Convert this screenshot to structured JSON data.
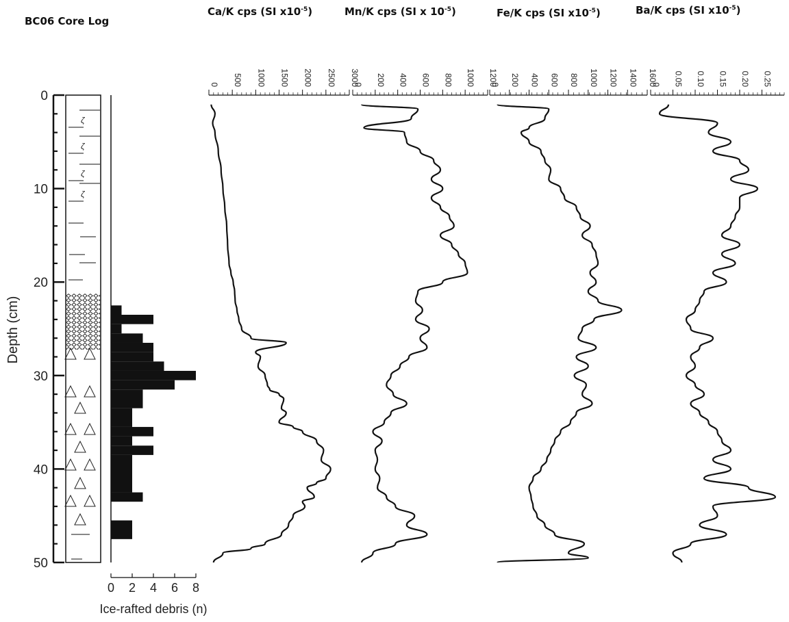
{
  "titles": {
    "core_log": "BC06 Core Log",
    "ca": {
      "main": "Ca/K cps (SI x10",
      "sup": "-5",
      "end": ")"
    },
    "mn": {
      "main": "Mn/K cps (SI x 10",
      "sup": "-5",
      "end": ")"
    },
    "fe": {
      "main": "Fe/K cps (SI x10",
      "sup": "-5",
      "end": ")"
    },
    "ba": {
      "main": "Ba/K cps (SI x10",
      "sup": "-5",
      "end": ")"
    }
  },
  "chart_data": [
    {
      "type": "bar",
      "orientation": "horizontal",
      "ylabel": "Depth (cm)",
      "xlabel": "Ice-rafted debris (n)",
      "ylim": [
        0,
        50
      ],
      "xlim": [
        0,
        8
      ],
      "yticks": [
        "0",
        "10",
        "20",
        "30",
        "40",
        "50"
      ],
      "xticks": [
        "0",
        "2",
        "4",
        "6",
        "8"
      ],
      "bars": [
        {
          "top": 22.5,
          "bottom": 23.5,
          "value": 1
        },
        {
          "top": 23.5,
          "bottom": 24.5,
          "value": 4
        },
        {
          "top": 24.5,
          "bottom": 25.5,
          "value": 1
        },
        {
          "top": 25.5,
          "bottom": 26.5,
          "value": 3
        },
        {
          "top": 26.5,
          "bottom": 27.5,
          "value": 4
        },
        {
          "top": 27.5,
          "bottom": 28.5,
          "value": 4
        },
        {
          "top": 28.5,
          "bottom": 29.5,
          "value": 5
        },
        {
          "top": 29.5,
          "bottom": 30.5,
          "value": 8
        },
        {
          "top": 30.5,
          "bottom": 31.5,
          "value": 6
        },
        {
          "top": 31.5,
          "bottom": 33.5,
          "value": 3
        },
        {
          "top": 33.5,
          "bottom": 35.5,
          "value": 2
        },
        {
          "top": 35.5,
          "bottom": 36.5,
          "value": 4
        },
        {
          "top": 36.5,
          "bottom": 37.5,
          "value": 2
        },
        {
          "top": 37.5,
          "bottom": 38.5,
          "value": 4
        },
        {
          "top": 38.5,
          "bottom": 42.5,
          "value": 2
        },
        {
          "top": 42.5,
          "bottom": 43.5,
          "value": 3
        },
        {
          "top": 45.5,
          "bottom": 47.5,
          "value": 2
        }
      ]
    },
    {
      "type": "line",
      "name": "Ca/K",
      "xlim": [
        0,
        3000
      ],
      "xticks": [
        "0",
        "500",
        "1000",
        "1500",
        "2000",
        "2500",
        "3000"
      ],
      "ylim": [
        0,
        50
      ],
      "points": [
        [
          50,
          1
        ],
        [
          130,
          2
        ],
        [
          80,
          3
        ],
        [
          130,
          4
        ],
        [
          200,
          6
        ],
        [
          260,
          8
        ],
        [
          300,
          10
        ],
        [
          340,
          12
        ],
        [
          380,
          14
        ],
        [
          400,
          16
        ],
        [
          430,
          18
        ],
        [
          470,
          19
        ],
        [
          520,
          20
        ],
        [
          550,
          21
        ],
        [
          560,
          22
        ],
        [
          600,
          23
        ],
        [
          640,
          24
        ],
        [
          700,
          25
        ],
        [
          900,
          26
        ],
        [
          1650,
          26.5
        ],
        [
          1000,
          27.5
        ],
        [
          1100,
          28
        ],
        [
          1050,
          29
        ],
        [
          1200,
          30
        ],
        [
          1250,
          31
        ],
        [
          1300,
          31.5
        ],
        [
          1500,
          32
        ],
        [
          1600,
          32.5
        ],
        [
          1550,
          33.5
        ],
        [
          1650,
          34
        ],
        [
          1500,
          35
        ],
        [
          1800,
          35.5
        ],
        [
          2000,
          36
        ],
        [
          2300,
          37
        ],
        [
          2450,
          38
        ],
        [
          2400,
          39
        ],
        [
          2600,
          40
        ],
        [
          2500,
          41
        ],
        [
          2300,
          41.5
        ],
        [
          2100,
          42
        ],
        [
          2250,
          43
        ],
        [
          2000,
          43.5
        ],
        [
          2050,
          44
        ],
        [
          1800,
          45
        ],
        [
          1700,
          46
        ],
        [
          1550,
          47
        ],
        [
          1200,
          48
        ],
        [
          900,
          48.5
        ],
        [
          300,
          49
        ],
        [
          100,
          50
        ]
      ]
    },
    {
      "type": "line",
      "name": "Mn/K",
      "xlim": [
        0,
        1200
      ],
      "xticks": [
        "0",
        "200",
        "400",
        "600",
        "800",
        "1000",
        "1200"
      ],
      "ylim": [
        0,
        50
      ],
      "points": [
        [
          80,
          1
        ],
        [
          580,
          1.5
        ],
        [
          520,
          2.5
        ],
        [
          100,
          3.5
        ],
        [
          460,
          4
        ],
        [
          480,
          5
        ],
        [
          600,
          6
        ],
        [
          720,
          7
        ],
        [
          780,
          8
        ],
        [
          700,
          9
        ],
        [
          800,
          10
        ],
        [
          700,
          11
        ],
        [
          780,
          12
        ],
        [
          860,
          13
        ],
        [
          900,
          14
        ],
        [
          780,
          15
        ],
        [
          880,
          16
        ],
        [
          940,
          17
        ],
        [
          1000,
          18
        ],
        [
          1020,
          19
        ],
        [
          800,
          20
        ],
        [
          580,
          21
        ],
        [
          560,
          22
        ],
        [
          620,
          23
        ],
        [
          560,
          24
        ],
        [
          680,
          25
        ],
        [
          600,
          26
        ],
        [
          660,
          27
        ],
        [
          500,
          28
        ],
        [
          420,
          29
        ],
        [
          340,
          30
        ],
        [
          300,
          31
        ],
        [
          360,
          32
        ],
        [
          480,
          33
        ],
        [
          340,
          34
        ],
        [
          280,
          35
        ],
        [
          180,
          36
        ],
        [
          260,
          37
        ],
        [
          200,
          38
        ],
        [
          220,
          39
        ],
        [
          200,
          40
        ],
        [
          240,
          41
        ],
        [
          220,
          42
        ],
        [
          300,
          43
        ],
        [
          380,
          44
        ],
        [
          550,
          45
        ],
        [
          480,
          46
        ],
        [
          660,
          47
        ],
        [
          380,
          48
        ],
        [
          180,
          49
        ],
        [
          80,
          50
        ]
      ]
    },
    {
      "type": "line",
      "name": "Fe/K",
      "xlim": [
        0,
        1600
      ],
      "xticks": [
        "0",
        "200",
        "400",
        "600",
        "800",
        "1000",
        "1200",
        "1400",
        "1600"
      ],
      "ylim": [
        0,
        50
      ],
      "points": [
        [
          80,
          1
        ],
        [
          600,
          1.5
        ],
        [
          560,
          2.5
        ],
        [
          400,
          3.5
        ],
        [
          320,
          4
        ],
        [
          400,
          5
        ],
        [
          520,
          6
        ],
        [
          560,
          7
        ],
        [
          620,
          8
        ],
        [
          600,
          9
        ],
        [
          720,
          10
        ],
        [
          760,
          11
        ],
        [
          880,
          12
        ],
        [
          920,
          13
        ],
        [
          1020,
          14
        ],
        [
          940,
          15
        ],
        [
          1040,
          16
        ],
        [
          1080,
          17
        ],
        [
          1100,
          18
        ],
        [
          1020,
          19
        ],
        [
          1080,
          20
        ],
        [
          1000,
          21
        ],
        [
          1100,
          22
        ],
        [
          1340,
          23
        ],
        [
          1060,
          24
        ],
        [
          940,
          25
        ],
        [
          900,
          26
        ],
        [
          1080,
          27
        ],
        [
          880,
          28
        ],
        [
          1000,
          29
        ],
        [
          860,
          30
        ],
        [
          980,
          31
        ],
        [
          940,
          32
        ],
        [
          1040,
          33
        ],
        [
          880,
          34
        ],
        [
          820,
          35
        ],
        [
          720,
          36
        ],
        [
          660,
          37
        ],
        [
          620,
          38
        ],
        [
          580,
          39
        ],
        [
          520,
          40
        ],
        [
          440,
          41
        ],
        [
          400,
          42
        ],
        [
          420,
          43
        ],
        [
          440,
          44
        ],
        [
          480,
          45
        ],
        [
          560,
          46
        ],
        [
          660,
          47
        ],
        [
          960,
          48
        ],
        [
          800,
          49
        ],
        [
          1000,
          49.5
        ],
        [
          80,
          50
        ]
      ]
    },
    {
      "type": "line",
      "name": "Ba/K",
      "xlim": [
        0,
        0.3
      ],
      "xticks": [
        "0",
        "0.05",
        "0.10",
        "0.15",
        "0.20",
        "0.25"
      ],
      "ylim": [
        0,
        50
      ],
      "points": [
        [
          0.04,
          1
        ],
        [
          0.02,
          2
        ],
        [
          0.15,
          3
        ],
        [
          0.13,
          4
        ],
        [
          0.18,
          5
        ],
        [
          0.14,
          6
        ],
        [
          0.2,
          7
        ],
        [
          0.22,
          8
        ],
        [
          0.18,
          9
        ],
        [
          0.24,
          10
        ],
        [
          0.2,
          11
        ],
        [
          0.2,
          12
        ],
        [
          0.19,
          13
        ],
        [
          0.18,
          14
        ],
        [
          0.16,
          15
        ],
        [
          0.2,
          16
        ],
        [
          0.16,
          17
        ],
        [
          0.19,
          18
        ],
        [
          0.14,
          19
        ],
        [
          0.17,
          20
        ],
        [
          0.12,
          21
        ],
        [
          0.11,
          22
        ],
        [
          0.1,
          23
        ],
        [
          0.08,
          24
        ],
        [
          0.09,
          25
        ],
        [
          0.14,
          26
        ],
        [
          0.11,
          27
        ],
        [
          0.09,
          28
        ],
        [
          0.1,
          29
        ],
        [
          0.08,
          30
        ],
        [
          0.1,
          31
        ],
        [
          0.12,
          32
        ],
        [
          0.09,
          33
        ],
        [
          0.11,
          34
        ],
        [
          0.13,
          35
        ],
        [
          0.15,
          36
        ],
        [
          0.16,
          37
        ],
        [
          0.18,
          38
        ],
        [
          0.14,
          39
        ],
        [
          0.18,
          40
        ],
        [
          0.12,
          41
        ],
        [
          0.22,
          42
        ],
        [
          0.28,
          43
        ],
        [
          0.14,
          44
        ],
        [
          0.15,
          45
        ],
        [
          0.11,
          46
        ],
        [
          0.17,
          47
        ],
        [
          0.09,
          48
        ],
        [
          0.05,
          49
        ],
        [
          0.07,
          50
        ]
      ]
    }
  ]
}
